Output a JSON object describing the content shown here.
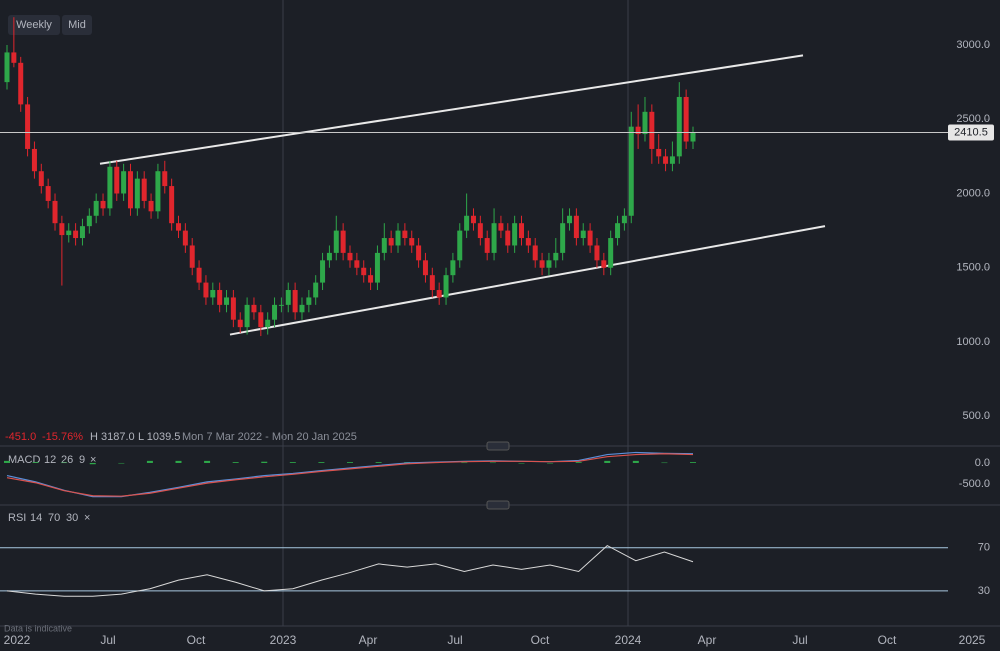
{
  "chart_data": {
    "type": "candlestick",
    "interval": "Weekly",
    "price_type": "Mid",
    "stats": [
      "-451.0",
      "-15.76%",
      "H 3187.0",
      "L 1039.5"
    ],
    "range": "Mon 7 Mar 2022 - Mon 20 Jan 2025",
    "footnote": "Data is indicative",
    "x_labels": [
      "2022",
      "Jul",
      "Oct",
      "2023",
      "Apr",
      "Jul",
      "Oct",
      "2024",
      "Apr",
      "Jul",
      "Oct",
      "2025"
    ],
    "colors": {
      "up": "#2ea84a",
      "down": "#e0262d"
    },
    "ylim": [
      340,
      3303
    ],
    "yticks": [
      {
        "value": 3000,
        "label": "3000.0"
      },
      {
        "value": 2500,
        "label": "2500.0"
      },
      {
        "value": 2000,
        "label": "2000.0"
      },
      {
        "value": 1500,
        "label": "1500.0"
      },
      {
        "value": 1000,
        "label": "1000.0"
      },
      {
        "value": 500,
        "label": "500.0"
      }
    ],
    "open": [
      2750,
      2950,
      2880,
      2600,
      2300,
      2150,
      2050,
      1950,
      1800,
      1720,
      1750,
      1700,
      1780,
      1850,
      1950,
      1900,
      2180,
      2000,
      2150,
      1900,
      2100,
      1950,
      1880,
      2150,
      2050,
      1800,
      1750,
      1650,
      1500,
      1400,
      1300,
      1350,
      1250,
      1300,
      1150,
      1100,
      1250,
      1200,
      1100,
      1150,
      1250,
      1250,
      1350,
      1200,
      1250,
      1300,
      1400,
      1550,
      1600,
      1750,
      1600,
      1550,
      1500,
      1450,
      1400,
      1600,
      1700,
      1650,
      1750,
      1700,
      1650,
      1550,
      1450,
      1350,
      1300,
      1450,
      1550,
      1750,
      1850,
      1800,
      1700,
      1600,
      1800,
      1750,
      1650,
      1800,
      1700,
      1650,
      1550,
      1500,
      1550,
      1600,
      1800,
      1850,
      1700,
      1750,
      1650,
      1550,
      1500,
      1700,
      1800,
      1850,
      2450,
      2400,
      2550,
      2300,
      2250,
      2200,
      2250,
      2650,
      2350
    ],
    "high": [
      3000,
      3187,
      2920,
      2650,
      2350,
      2200,
      2100,
      2000,
      1850,
      1800,
      1800,
      1830,
      1900,
      2000,
      2000,
      2220,
      2220,
      2200,
      2200,
      2150,
      2150,
      2000,
      2200,
      2220,
      2100,
      1850,
      1800,
      1700,
      1550,
      1450,
      1400,
      1400,
      1350,
      1350,
      1200,
      1300,
      1300,
      1250,
      1200,
      1300,
      1300,
      1400,
      1400,
      1300,
      1350,
      1450,
      1600,
      1650,
      1850,
      1800,
      1650,
      1600,
      1550,
      1500,
      1650,
      1800,
      1750,
      1800,
      1800,
      1750,
      1700,
      1600,
      1500,
      1400,
      1500,
      1600,
      1800,
      2000,
      1900,
      1850,
      1750,
      1900,
      1850,
      1800,
      1850,
      1850,
      1750,
      1700,
      1600,
      1600,
      1700,
      1900,
      1900,
      1900,
      1800,
      1800,
      1700,
      1600,
      1750,
      1850,
      1900,
      2550,
      2600,
      2650,
      2600,
      2400,
      2300,
      2350,
      2750,
      2700,
      2450
    ],
    "low": [
      2700,
      2850,
      2550,
      2250,
      2100,
      2000,
      1900,
      1750,
      1380,
      1670,
      1650,
      1650,
      1730,
      1800,
      1850,
      1850,
      1950,
      1950,
      1850,
      1850,
      1900,
      1830,
      1830,
      2000,
      1750,
      1700,
      1600,
      1450,
      1350,
      1250,
      1250,
      1200,
      1200,
      1100,
      1060,
      1050,
      1150,
      1040,
      1050,
      1100,
      1200,
      1200,
      1150,
      1150,
      1200,
      1250,
      1350,
      1500,
      1550,
      1550,
      1500,
      1450,
      1400,
      1350,
      1350,
      1550,
      1600,
      1600,
      1650,
      1600,
      1500,
      1400,
      1300,
      1250,
      1250,
      1400,
      1500,
      1700,
      1750,
      1650,
      1550,
      1550,
      1700,
      1600,
      1600,
      1650,
      1600,
      1500,
      1450,
      1450,
      1500,
      1550,
      1750,
      1650,
      1650,
      1600,
      1500,
      1450,
      1450,
      1650,
      1750,
      1800,
      2300,
      2350,
      2200,
      2200,
      2150,
      2150,
      2200,
      2300,
      2300
    ],
    "close": [
      2950,
      2880,
      2600,
      2300,
      2150,
      2050,
      1950,
      1800,
      1720,
      1750,
      1700,
      1780,
      1850,
      1950,
      1900,
      2180,
      2000,
      2150,
      1900,
      2100,
      1950,
      1880,
      2150,
      2050,
      1800,
      1750,
      1650,
      1500,
      1400,
      1300,
      1350,
      1250,
      1300,
      1150,
      1100,
      1250,
      1200,
      1100,
      1150,
      1250,
      1250,
      1350,
      1200,
      1250,
      1300,
      1400,
      1550,
      1600,
      1750,
      1600,
      1550,
      1500,
      1450,
      1400,
      1600,
      1700,
      1650,
      1750,
      1700,
      1650,
      1550,
      1450,
      1350,
      1300,
      1450,
      1550,
      1750,
      1850,
      1800,
      1700,
      1600,
      1800,
      1750,
      1650,
      1800,
      1700,
      1650,
      1550,
      1500,
      1550,
      1600,
      1800,
      1850,
      1700,
      1750,
      1650,
      1550,
      1500,
      1700,
      1800,
      1850,
      2450,
      2400,
      2550,
      2300,
      2250,
      2200,
      2250,
      2650,
      2350,
      2410.5
    ],
    "trendlines": [
      {
        "values": [
          2200,
          2930
        ]
      },
      {
        "values": [
          1050,
          1780
        ]
      }
    ],
    "macd": {
      "label": "MACD",
      "params": [
        "12",
        "26",
        "9"
      ],
      "ylim": [
        -1000,
        380
      ],
      "yticks": [
        {
          "value": 0,
          "label": "0.0"
        },
        {
          "value": -500,
          "label": "-500.0"
        }
      ],
      "series": [
        {
          "color": "#5b8fd9",
          "values": [
            -300,
            -450,
            -650,
            -800,
            -800,
            -700,
            -580,
            -450,
            -380,
            -300,
            -250,
            -180,
            -120,
            -60,
            0,
            20,
            40,
            50,
            40,
            30,
            60,
            200,
            250,
            230,
            220
          ]
        },
        {
          "color": "#d9534f",
          "values": [
            -350,
            -470,
            -660,
            -780,
            -790,
            -720,
            -600,
            -480,
            -400,
            -330,
            -270,
            -200,
            -140,
            -80,
            -20,
            10,
            30,
            40,
            40,
            30,
            40,
            150,
            200,
            220,
            200
          ]
        }
      ],
      "histogram": {
        "color": "#2ea84a",
        "values": [
          50,
          20,
          10,
          -30,
          -10,
          50,
          50,
          50,
          20,
          30,
          20,
          20,
          20,
          20,
          20,
          10,
          10,
          10,
          0,
          0,
          20,
          50,
          50,
          10,
          20
        ]
      }
    },
    "rsi": {
      "label": "RSI",
      "params": [
        "14",
        "70",
        "30"
      ],
      "ylim": [
        3,
        105
      ],
      "yticks": [
        70,
        30
      ],
      "color": "#d9d9d9",
      "values": [
        30,
        27,
        25,
        25,
        27,
        32,
        40,
        45,
        38,
        30,
        32,
        40,
        47,
        55,
        52,
        55,
        48,
        54,
        50,
        54,
        48,
        72,
        58,
        66,
        57
      ]
    }
  }
}
